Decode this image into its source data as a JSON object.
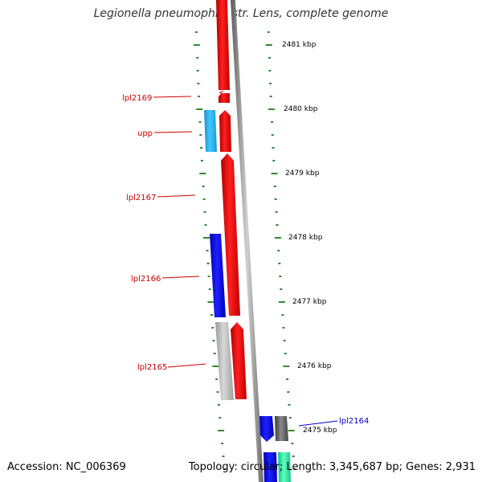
{
  "title": "Legionella pneumophila str. Lens, complete genome",
  "footer": {
    "accession": "Accession: NC_006369",
    "summary": "Topology: circular; Length: 3,345,687 bp; Genes: 2,931"
  },
  "kbp_labels": [
    "2481 kbp",
    "2480 kbp",
    "2479 kbp",
    "2478 kbp",
    "2477 kbp",
    "2476 kbp",
    "2475 kbp"
  ],
  "genes": [
    {
      "name": "lpl2169",
      "strand": "forward",
      "color": "#e00000"
    },
    {
      "name": "upp",
      "strand": "reverse",
      "color": "#29b6f6"
    },
    {
      "name": "lpl2167",
      "strand": "forward",
      "color": "#e00000"
    },
    {
      "name": "lpl2166",
      "strand": "reverse",
      "color": "#0000e0"
    },
    {
      "name": "lpl2165",
      "strand": "forward",
      "color": "#e00000"
    },
    {
      "name": "lpl2164",
      "strand": "reverse",
      "color": "#0000e0"
    }
  ],
  "colors": {
    "forward_label": "#cc0000",
    "reverse_label": "#0000cc",
    "tick": "#2e8b2e",
    "backbone": "#888888",
    "grey_gene": "#bdbdbd",
    "dark_grey_gene": "#666666",
    "teal_gene": "#2ee8a0"
  }
}
